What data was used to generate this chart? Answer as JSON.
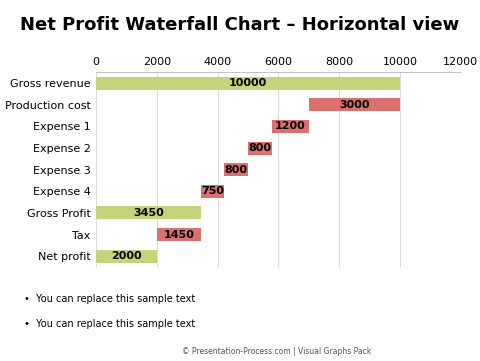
{
  "title": "Net Profit Waterfall Chart – Horizontal view",
  "categories": [
    "Gross revenue",
    "Production cost",
    "Expense 1",
    "Expense 2",
    "Expense 3",
    "Expense 4",
    "Gross Profit",
    "Tax",
    "Net profit"
  ],
  "values": [
    10000,
    3000,
    1200,
    800,
    800,
    750,
    3450,
    1450,
    2000
  ],
  "starts": [
    0,
    7000,
    5800,
    5000,
    4200,
    3450,
    0,
    2000,
    0
  ],
  "colors": [
    "#c4d47b",
    "#d9726e",
    "#d9726e",
    "#d9726e",
    "#d9726e",
    "#d9726e",
    "#c4d47b",
    "#d9726e",
    "#c4d47b"
  ],
  "xlim": [
    0,
    12000
  ],
  "xticks": [
    0,
    2000,
    4000,
    6000,
    8000,
    10000,
    12000
  ],
  "bar_height": 0.6,
  "background_color": "#ffffff",
  "title_fontsize": 13,
  "label_fontsize": 8,
  "value_fontsize": 8,
  "bullet_texts": [
    "You can replace this sample text",
    "You can replace this sample text"
  ],
  "footer_text": "© Presentation-Process.com | Visual Graphs Pack"
}
